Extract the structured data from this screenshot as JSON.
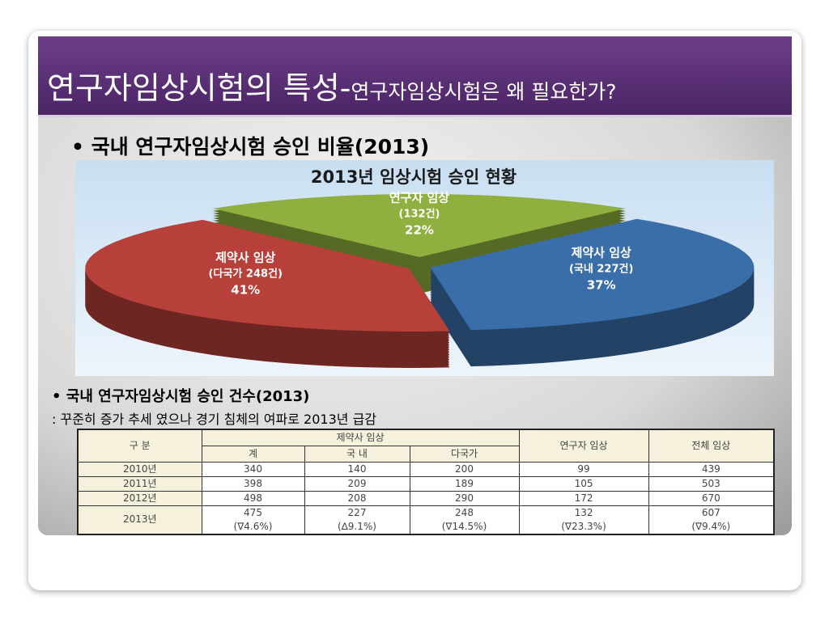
{
  "slide": {
    "title": "연구자임상시험의 특성-",
    "subtitle": "연구자임상시험은 왜 필요한가?",
    "bullet1": "국내 연구자임상시험 승인 비율(2013)",
    "bullet2": "국내 연구자임상시험 승인 건수(2013)",
    "note": ": 꾸준히 증가 추세 였으나 경기 침체의 여파로 2013년 급감"
  },
  "chart_data": {
    "type": "pie",
    "title": "2013년 임상시험 승인 현황",
    "categories": [
      "연구자 임상",
      "제약사 임상",
      "제약사 임상"
    ],
    "sublabels": [
      "(132건)",
      "(국내 227건)",
      "(다국가 248건)"
    ],
    "values": [
      22,
      37,
      41
    ],
    "value_labels": [
      "22%",
      "37%",
      "41%"
    ],
    "colors": [
      "#8fb03e",
      "#3a6ea8",
      "#b8403a"
    ]
  },
  "table": {
    "header1": [
      "구 분",
      "제약사 임상",
      "연구자 임상",
      "전체 임상"
    ],
    "header2": [
      "계",
      "국 내",
      "다국가"
    ],
    "rows": [
      [
        "2010년",
        "340",
        "140",
        "200",
        "99",
        "439"
      ],
      [
        "2011년",
        "398",
        "209",
        "189",
        "105",
        "503"
      ],
      [
        "2012년",
        "498",
        "208",
        "290",
        "172",
        "670"
      ],
      [
        "2013년",
        [
          "475",
          "(∇4.6%)"
        ],
        [
          "227",
          "(∆9.1%)"
        ],
        [
          "248",
          "(∇14.5%)"
        ],
        [
          "132",
          "(∇23.3%)"
        ],
        [
          "607",
          "(∇9.4%)"
        ]
      ]
    ]
  }
}
